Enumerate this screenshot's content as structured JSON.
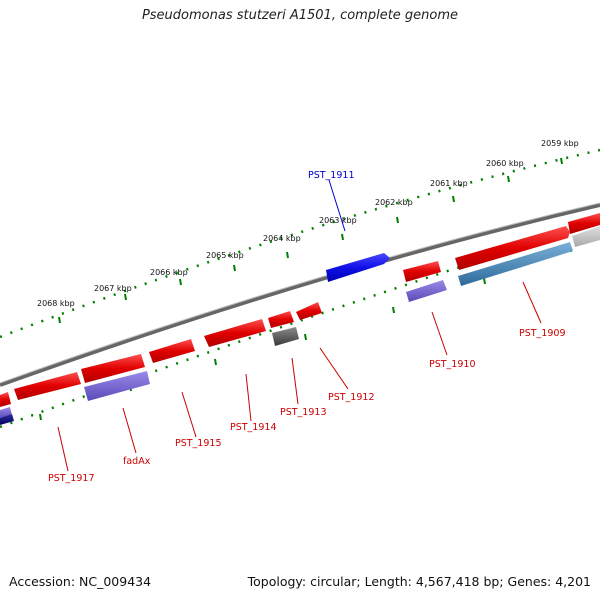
{
  "header": {
    "title": "Pseudomonas stutzeri A1501, complete genome"
  },
  "footer": {
    "accession": "Accession: NC_009434",
    "summary": "Topology: circular; Length: 4,567,418 bp; Genes: 4,201"
  },
  "colors": {
    "backbone": "#7a7a7a",
    "gene_forward": "#e00000",
    "gene_hypothetical": "#1010e8",
    "gene_pseudo": "#555555",
    "gene_protein": "#6a5acd",
    "gene_rna": "#4682b4",
    "ticks": "#008000",
    "label_red": "#cc0000",
    "label_blue": "#0000cc"
  },
  "scale": {
    "ticks": [
      {
        "label": "2059 kbp"
      },
      {
        "label": "2060 kbp"
      },
      {
        "label": "2061 kbp"
      },
      {
        "label": "2062 kbp"
      },
      {
        "label": "2063 kbp"
      },
      {
        "label": "2064 kbp"
      },
      {
        "label": "2065 kbp"
      },
      {
        "label": "2066 kbp"
      },
      {
        "label": "2067 kbp"
      },
      {
        "label": "2068 kbp"
      }
    ]
  },
  "genes": [
    {
      "name": "PST_1909",
      "color": "label_red"
    },
    {
      "name": "PST_1910",
      "color": "label_red"
    },
    {
      "name": "PST_1911",
      "color": "label_blue"
    },
    {
      "name": "PST_1912",
      "color": "label_red"
    },
    {
      "name": "PST_1913",
      "color": "label_red"
    },
    {
      "name": "PST_1914",
      "color": "label_red"
    },
    {
      "name": "PST_1915",
      "color": "label_red"
    },
    {
      "name": "fadAx",
      "color": "label_red"
    },
    {
      "name": "PST_1917",
      "color": "label_red"
    }
  ]
}
